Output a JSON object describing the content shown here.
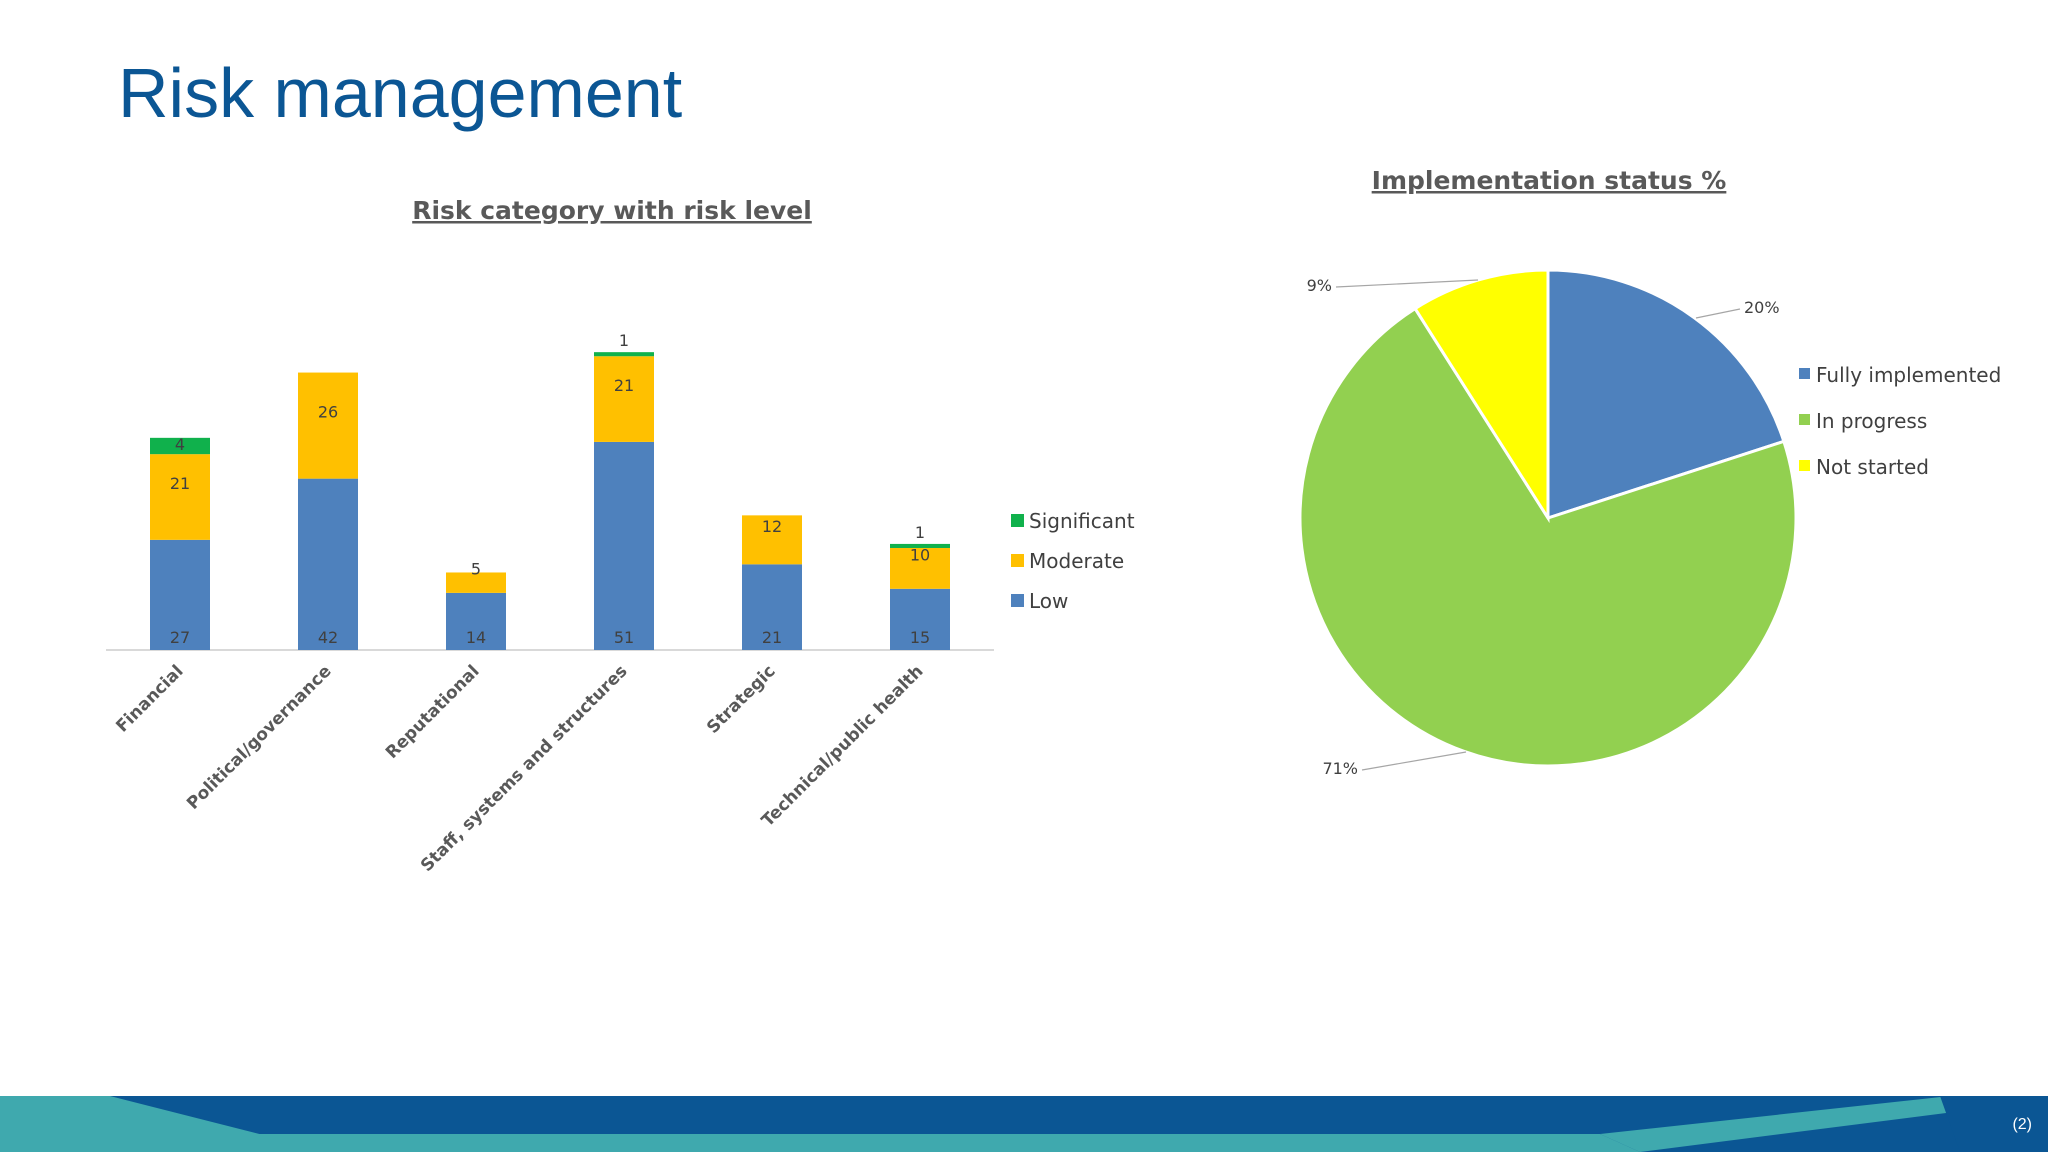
{
  "slide": {
    "title": "Risk management",
    "page_number": "(2)"
  },
  "colors": {
    "title": "#0b5694",
    "low": "#4e81bd",
    "moderate": "#ffc000",
    "significant": "#10b14c",
    "fully_implemented": "#4e81bd",
    "in_progress": "#92d050",
    "not_started": "#ffff00",
    "footer_dark": "#0b5694",
    "footer_teal": "#3fa9ae"
  },
  "chart_data": [
    {
      "type": "bar",
      "stacked": true,
      "title": "Risk category with risk level",
      "categories": [
        "Financial",
        "Political/governance",
        "Reputational",
        "Staff, systems and structures",
        "Strategic",
        "Technical/public health"
      ],
      "series": [
        {
          "name": "Low",
          "values": [
            27,
            42,
            14,
            51,
            21,
            15
          ]
        },
        {
          "name": "Moderate",
          "values": [
            21,
            26,
            5,
            21,
            12,
            10
          ]
        },
        {
          "name": "Significant",
          "values": [
            4,
            0,
            0,
            1,
            0,
            1
          ]
        }
      ],
      "legend_labels": [
        "Significant",
        "Moderate",
        "Low"
      ],
      "legend_position": "right",
      "grid": false
    },
    {
      "type": "pie",
      "title": "Implementation status %",
      "slices": [
        {
          "name": "Fully implemented",
          "value": 20,
          "label": "20%"
        },
        {
          "name": "In progress",
          "value": 71,
          "label": "71%"
        },
        {
          "name": "Not started",
          "value": 9,
          "label": "9%"
        }
      ],
      "legend_position": "right"
    }
  ]
}
